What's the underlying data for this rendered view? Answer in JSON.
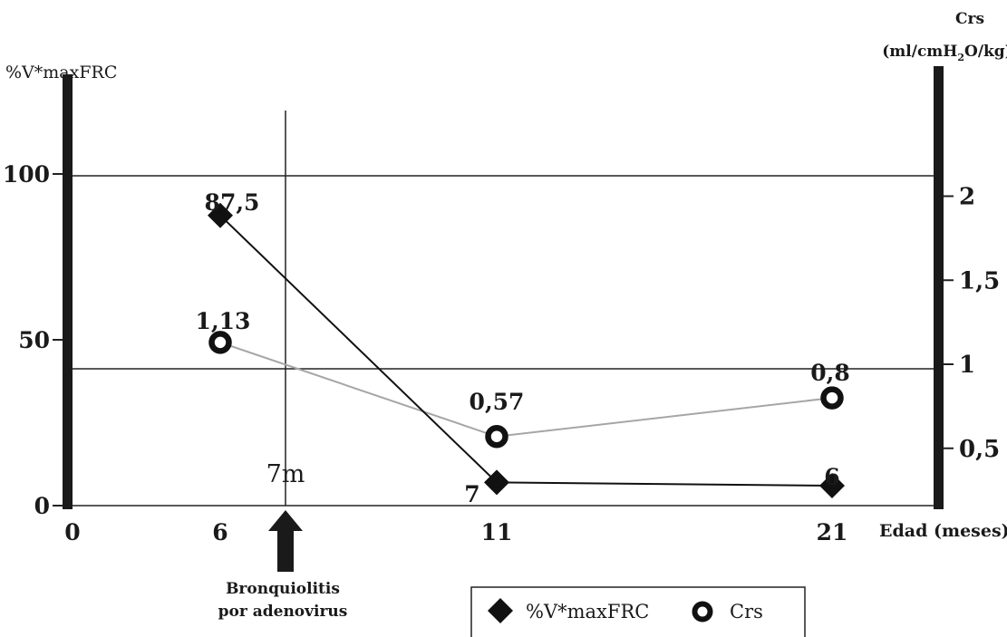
{
  "chart_data": {
    "type": "line",
    "left_axis_title": "%V*maxFRC",
    "right_axis_title": {
      "line1": "Crs",
      "line2_prefix": "(ml/cmH",
      "line2_sub": "2",
      "line2_suffix": "O/kg)"
    },
    "x_ticks": [
      "0",
      "6",
      "11",
      "21"
    ],
    "x_values": [
      0,
      6,
      11,
      21
    ],
    "xlabel": "Edad (meses)",
    "y_left_ticks": [
      "0",
      "50",
      "100"
    ],
    "y_right_ticks": [
      "0,5",
      "1",
      "1,5",
      "2"
    ],
    "series": [
      {
        "name": "%V*maxFRC",
        "axis": "left",
        "marker": "diamond",
        "color": "#111111",
        "x": [
          6,
          11,
          21
        ],
        "y": [
          87.5,
          7,
          6
        ],
        "labels": [
          "87,5",
          "7",
          "6"
        ]
      },
      {
        "name": "Crs",
        "axis": "right",
        "marker": "ring",
        "color": "#a6a6a6",
        "x": [
          6,
          11,
          21
        ],
        "y": [
          1.13,
          0.57,
          0.8
        ],
        "labels": [
          "1,13",
          "0,57",
          "0,8"
        ]
      }
    ],
    "event": {
      "x": 7,
      "label": "7m",
      "annotation_line1": "Bronquiolitis",
      "annotation_line2": "por adenovirus"
    },
    "legend": {
      "position": "bottom-center",
      "items": [
        "%V*maxFRC",
        "Crs"
      ]
    }
  }
}
